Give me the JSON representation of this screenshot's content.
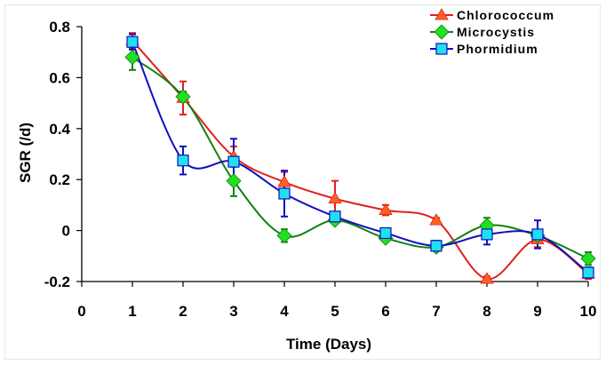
{
  "chart_data": {
    "type": "line",
    "title": "",
    "xlabel": "Time (Days)",
    "ylabel": "SGR (/d)",
    "xlim": [
      0,
      10
    ],
    "ylim": [
      -0.2,
      0.8
    ],
    "xticks": [
      "0",
      "1",
      "2",
      "3",
      "4",
      "5",
      "6",
      "7",
      "8",
      "9",
      "10"
    ],
    "yticks": [
      "-0.2",
      "0",
      "0.2",
      "0.4",
      "0.6",
      "0.8"
    ],
    "grid": false,
    "legend_position": "top-right",
    "smooth": true,
    "x": [
      1,
      2,
      3,
      4,
      5,
      6,
      7,
      8,
      9,
      10
    ],
    "series": [
      {
        "name": "Chlorococcum",
        "line_color": "#e02020",
        "marker": "triangle",
        "marker_color": "#ff6020",
        "values": [
          0.745,
          0.52,
          0.29,
          0.19,
          0.125,
          0.08,
          0.04,
          -0.19,
          -0.035,
          -0.17
        ],
        "errors": [
          0.03,
          0.065,
          0.04,
          0.04,
          0.07,
          0.02,
          0.01,
          0.01,
          0.03,
          0.02
        ]
      },
      {
        "name": "Microcystis",
        "line_color": "#108010",
        "marker": "diamond",
        "marker_color": "#20e020",
        "values": [
          0.68,
          0.525,
          0.195,
          -0.02,
          0.04,
          -0.03,
          -0.065,
          0.02,
          -0.02,
          -0.11
        ],
        "errors": [
          0.05,
          0.02,
          0.06,
          0.025,
          0.01,
          0.01,
          0.01,
          0.03,
          0.01,
          0.025
        ]
      },
      {
        "name": "Phormidium",
        "line_color": "#1010c0",
        "marker": "square",
        "marker_color": "#20e0f0",
        "values": [
          0.74,
          0.275,
          0.27,
          0.145,
          0.055,
          -0.01,
          -0.06,
          -0.015,
          -0.015,
          -0.165
        ],
        "errors": [
          0.03,
          0.055,
          0.09,
          0.09,
          0.01,
          0.01,
          0.02,
          0.04,
          0.055,
          0.02
        ]
      }
    ]
  }
}
